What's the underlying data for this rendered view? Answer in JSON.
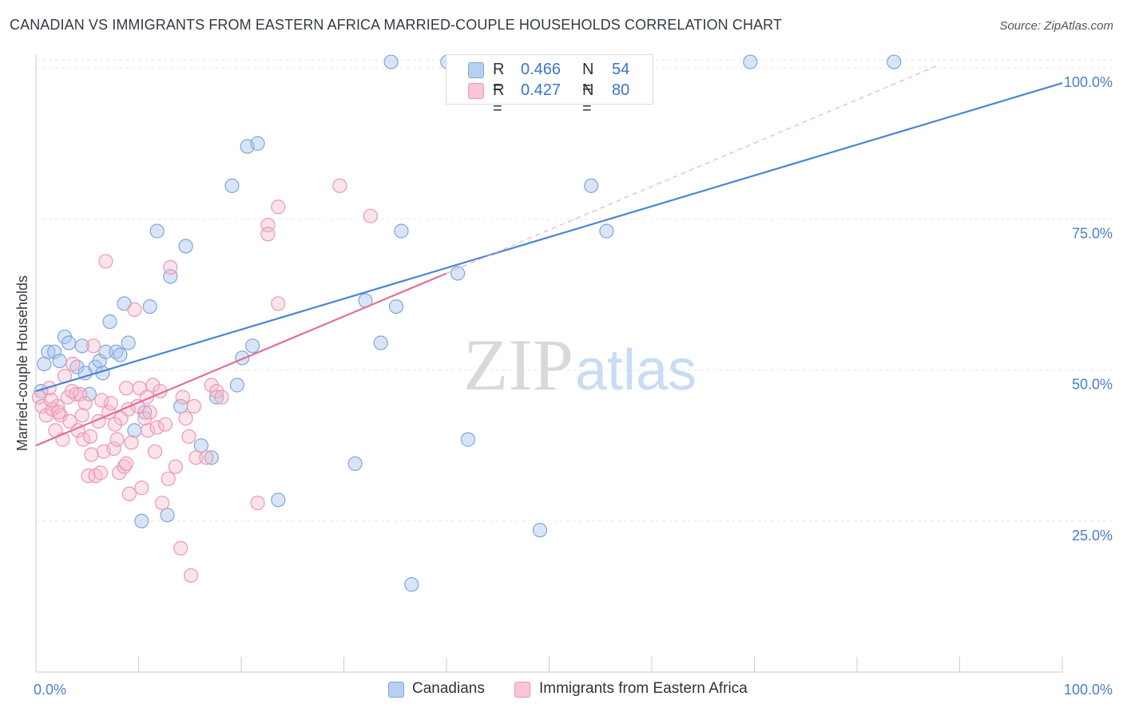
{
  "title": "CANADIAN VS IMMIGRANTS FROM EASTERN AFRICA MARRIED-COUPLE HOUSEHOLDS CORRELATION CHART",
  "source": "Source: ZipAtlas.com",
  "watermark": {
    "zip": "ZIP",
    "atlas": "atlas"
  },
  "legend": {
    "rows": [
      {
        "r_label": "R =",
        "r_value": "0.466",
        "n_label": "N =",
        "n_value": "54",
        "color": "#a9c6ee",
        "stroke": "#6f9ad6"
      },
      {
        "r_label": "R =",
        "r_value": "0.427",
        "n_label": "N =",
        "n_value": "80",
        "color": "#f6b9cb",
        "stroke": "#e889a6"
      }
    ]
  },
  "bottom_legend": {
    "canadians": "Canadians",
    "immigrants": "Immigrants from Eastern Africa"
  },
  "chart_data": {
    "type": "scatter",
    "title": "CANADIAN VS IMMIGRANTS FROM EASTERN AFRICA MARRIED-COUPLE HOUSEHOLDS CORRELATION CHART",
    "xlabel": "",
    "ylabel": "Married-couple Households",
    "xlim": [
      0,
      100
    ],
    "ylim": [
      0,
      102
    ],
    "x_tick_labels": [
      "0.0%",
      "100.0%"
    ],
    "y_tick_labels": [
      "25.0%",
      "50.0%",
      "75.0%",
      "100.0%"
    ],
    "y_ticks": [
      25,
      50,
      75,
      100
    ],
    "grid": true,
    "colors": {
      "canadians": "#4a86d4",
      "immigrants": "#e0709a",
      "axis_label": "#4a7fc8"
    },
    "series": [
      {
        "name": "Canadians",
        "trend": {
          "x": [
            0,
            100
          ],
          "y": [
            46.5,
            97.5
          ]
        },
        "points": [
          [
            0.5,
            46.5
          ],
          [
            0.8,
            51
          ],
          [
            1.2,
            53
          ],
          [
            1.8,
            53
          ],
          [
            2.3,
            51.5
          ],
          [
            2.8,
            55.5
          ],
          [
            3.2,
            54.5
          ],
          [
            4,
            50.5
          ],
          [
            4.5,
            54
          ],
          [
            4.8,
            49.5
          ],
          [
            5.2,
            46
          ],
          [
            5.8,
            50.5
          ],
          [
            6.2,
            51.5
          ],
          [
            6.5,
            49.5
          ],
          [
            6.8,
            53
          ],
          [
            7.2,
            58
          ],
          [
            7.8,
            53
          ],
          [
            8.2,
            52.5
          ],
          [
            8.6,
            61
          ],
          [
            9.0,
            54.5
          ],
          [
            9.6,
            40
          ],
          [
            10.3,
            25
          ],
          [
            10.6,
            43
          ],
          [
            11.1,
            60.5
          ],
          [
            11.8,
            73
          ],
          [
            12.8,
            26
          ],
          [
            13.1,
            65.5
          ],
          [
            14.1,
            44
          ],
          [
            14.6,
            70.5
          ],
          [
            16.1,
            37.5
          ],
          [
            17.1,
            35.5
          ],
          [
            17.6,
            45.5
          ],
          [
            19.1,
            80.5
          ],
          [
            19.6,
            47.5
          ],
          [
            20.1,
            52
          ],
          [
            20.6,
            87
          ],
          [
            21.1,
            54
          ],
          [
            21.6,
            87.5
          ],
          [
            23.6,
            28.5
          ],
          [
            31.1,
            34.5
          ],
          [
            32.1,
            61.5
          ],
          [
            33.6,
            54.5
          ],
          [
            34.6,
            101
          ],
          [
            35.6,
            73
          ],
          [
            35.1,
            60.5
          ],
          [
            36.6,
            14.5
          ],
          [
            40.1,
            101
          ],
          [
            41.1,
            66
          ],
          [
            42.1,
            38.5
          ],
          [
            49.1,
            23.5
          ],
          [
            54.1,
            80.5
          ],
          [
            55.6,
            73
          ],
          [
            69.6,
            101
          ],
          [
            83.6,
            101
          ]
        ]
      },
      {
        "name": "Immigrants from Eastern Africa",
        "trend": {
          "x": [
            0,
            40
          ],
          "y": [
            37.5,
            66
          ]
        },
        "dashed_extension": {
          "x": [
            40,
            88
          ],
          "y": [
            66,
            100.5
          ]
        },
        "points": [
          [
            0.3,
            45.5
          ],
          [
            0.6,
            44
          ],
          [
            1.0,
            42.5
          ],
          [
            1.3,
            47
          ],
          [
            1.6,
            43.5
          ],
          [
            1.9,
            40
          ],
          [
            2.1,
            44
          ],
          [
            2.4,
            42.5
          ],
          [
            2.6,
            38.5
          ],
          [
            2.8,
            49
          ],
          [
            3.1,
            45.5
          ],
          [
            3.3,
            41.5
          ],
          [
            3.6,
            51
          ],
          [
            3.9,
            46
          ],
          [
            4.1,
            40
          ],
          [
            4.3,
            46
          ],
          [
            4.6,
            38.5
          ],
          [
            4.8,
            44.5
          ],
          [
            5.1,
            32.5
          ],
          [
            5.3,
            39
          ],
          [
            5.6,
            54
          ],
          [
            5.8,
            32.5
          ],
          [
            6.1,
            41.5
          ],
          [
            6.3,
            33
          ],
          [
            6.6,
            36.5
          ],
          [
            6.8,
            68
          ],
          [
            7.1,
            43
          ],
          [
            7.3,
            44.5
          ],
          [
            7.6,
            37
          ],
          [
            7.9,
            38.5
          ],
          [
            8.1,
            33
          ],
          [
            8.3,
            42
          ],
          [
            8.6,
            34
          ],
          [
            8.8,
            34.5
          ],
          [
            9.1,
            29.5
          ],
          [
            9.3,
            38
          ],
          [
            9.6,
            60
          ],
          [
            9.9,
            44
          ],
          [
            10.1,
            47
          ],
          [
            10.3,
            30.5
          ],
          [
            10.6,
            42
          ],
          [
            10.9,
            40
          ],
          [
            11.1,
            43
          ],
          [
            11.4,
            47.5
          ],
          [
            11.6,
            36.5
          ],
          [
            11.8,
            40.5
          ],
          [
            12.1,
            46.5
          ],
          [
            12.3,
            28
          ],
          [
            12.6,
            41
          ],
          [
            12.9,
            32
          ],
          [
            13.1,
            67
          ],
          [
            13.6,
            34
          ],
          [
            14.1,
            20.5
          ],
          [
            14.3,
            45.5
          ],
          [
            14.6,
            42
          ],
          [
            14.9,
            39
          ],
          [
            15.1,
            16
          ],
          [
            15.4,
            44
          ],
          [
            15.6,
            35.5
          ],
          [
            16.6,
            35.5
          ],
          [
            17.1,
            47.5
          ],
          [
            17.6,
            46.5
          ],
          [
            18.1,
            45.5
          ],
          [
            21.6,
            28
          ],
          [
            22.6,
            74
          ],
          [
            22.6,
            72.5
          ],
          [
            23.6,
            61
          ],
          [
            23.6,
            77
          ],
          [
            29.6,
            80.5
          ],
          [
            32.6,
            75.5
          ],
          [
            1.5,
            45
          ],
          [
            2.2,
            43
          ],
          [
            4.5,
            42.5
          ],
          [
            6.4,
            45
          ],
          [
            7.7,
            41
          ],
          [
            9.0,
            43.5
          ],
          [
            10.8,
            45.5
          ],
          [
            5.4,
            36
          ],
          [
            3.5,
            46.5
          ],
          [
            8.8,
            47
          ]
        ]
      }
    ]
  }
}
